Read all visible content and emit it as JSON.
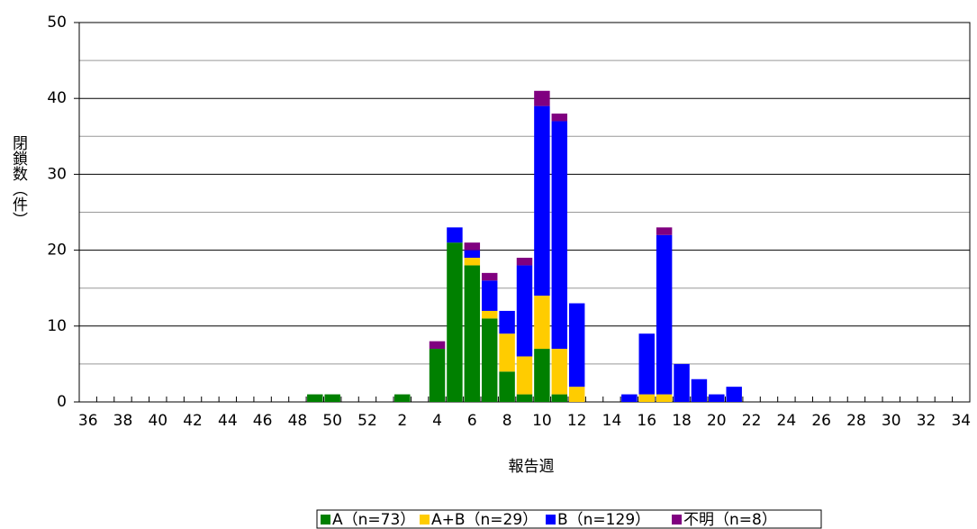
{
  "chart_data": {
    "type": "stacked_bar",
    "y_label": "閉鎖数（件）",
    "x_label": "報告週",
    "categories": [
      "36",
      null,
      "38",
      null,
      "40",
      null,
      "42",
      null,
      "44",
      null,
      "46",
      null,
      "48",
      null,
      "50",
      null,
      "52",
      null,
      "2",
      null,
      "4",
      null,
      "6",
      null,
      "8",
      null,
      "10",
      null,
      "12",
      null,
      "14",
      null,
      "16",
      null,
      "18",
      null,
      "20",
      null,
      "22",
      null,
      "24",
      null,
      "26",
      null,
      "28",
      null,
      "30",
      null,
      "32",
      null,
      "34"
    ],
    "series": [
      {
        "name": "A（n=73）",
        "color": "#008000",
        "values": [
          0,
          0,
          0,
          0,
          0,
          0,
          0,
          0,
          0,
          0,
          0,
          0,
          0,
          1,
          1,
          0,
          0,
          0,
          1,
          0,
          7,
          21,
          18,
          11,
          4,
          1,
          7,
          1,
          0,
          0,
          0,
          0,
          0,
          0,
          0,
          0,
          0,
          0,
          0,
          0,
          0,
          0,
          0,
          0,
          0,
          0,
          0,
          0,
          0,
          0,
          0
        ]
      },
      {
        "name": "A+B（n=29）",
        "color": "#ffcc00",
        "values": [
          0,
          0,
          0,
          0,
          0,
          0,
          0,
          0,
          0,
          0,
          0,
          0,
          0,
          0,
          0,
          0,
          0,
          0,
          0,
          0,
          0,
          0,
          1,
          1,
          5,
          5,
          7,
          6,
          2,
          0,
          0,
          0,
          1,
          1,
          0,
          0,
          0,
          0,
          0,
          0,
          0,
          0,
          0,
          0,
          0,
          0,
          0,
          0,
          0,
          0,
          0
        ]
      },
      {
        "name": "B（n=129）",
        "color": "#0000ff",
        "values": [
          0,
          0,
          0,
          0,
          0,
          0,
          0,
          0,
          0,
          0,
          0,
          0,
          0,
          0,
          0,
          0,
          0,
          0,
          0,
          0,
          0,
          2,
          1,
          4,
          3,
          12,
          25,
          30,
          11,
          0,
          0,
          1,
          8,
          21,
          5,
          3,
          1,
          2,
          0,
          0,
          0,
          0,
          0,
          0,
          0,
          0,
          0,
          0,
          0,
          0,
          0
        ]
      },
      {
        "name": "不明（n=8）",
        "color": "#800080",
        "values": [
          0,
          0,
          0,
          0,
          0,
          0,
          0,
          0,
          0,
          0,
          0,
          0,
          0,
          0,
          0,
          0,
          0,
          0,
          0,
          0,
          1,
          0,
          1,
          1,
          0,
          1,
          2,
          1,
          0,
          0,
          0,
          0,
          0,
          1,
          0,
          0,
          0,
          0,
          0,
          0,
          0,
          0,
          0,
          0,
          0,
          0,
          0,
          0,
          0,
          0,
          0
        ]
      }
    ],
    "ylim": [
      0,
      50
    ],
    "yticks": [
      0,
      10,
      20,
      30,
      40,
      50
    ],
    "ygrid_minor": [
      5,
      15,
      25,
      35,
      45
    ],
    "grid": true,
    "legend": "bottom"
  }
}
